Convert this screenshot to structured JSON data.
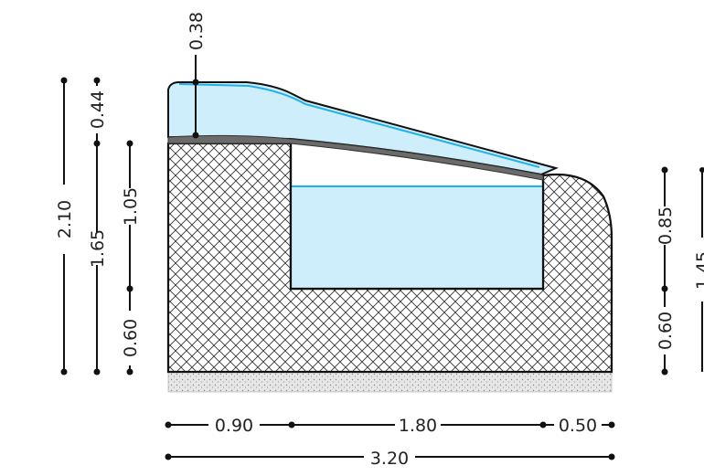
{
  "colors": {
    "water": "#cdeefa",
    "water_line": "#22b0e8",
    "concrete_hatch": "#333333",
    "slab": "#6b6b6b",
    "foundation": "#d9d9d9"
  },
  "dimensions": {
    "horizontal": {
      "segment_1": "0.90",
      "segment_2": "1.80",
      "segment_3": "0.50",
      "total": "3.20"
    },
    "vertical_left": {
      "total": "2.10",
      "middle": "1.65",
      "top": "0.44",
      "upper_inner": "1.05",
      "lower_inner": "0.60",
      "slab_thickness": "0.38"
    },
    "vertical_right": {
      "upper": "0.85",
      "lower": "0.60",
      "total_partial": "1.45"
    }
  }
}
